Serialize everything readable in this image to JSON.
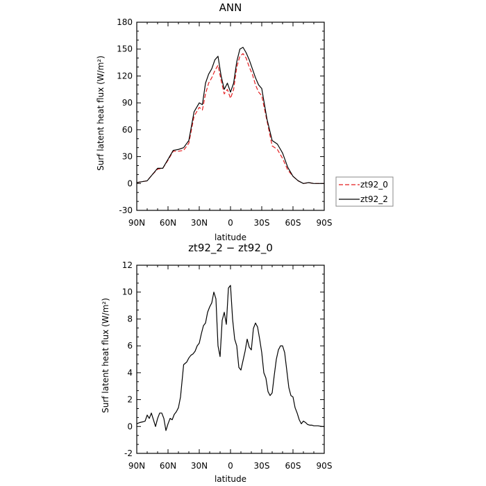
{
  "chart_data": [
    {
      "type": "line",
      "title": "ANN",
      "xlabel": "latitude",
      "ylabel": "Surf latent heat flux (W/m²)",
      "xlim": [
        90,
        -90
      ],
      "ylim": [
        -30,
        180
      ],
      "xticks": [
        90,
        60,
        30,
        0,
        -30,
        -60,
        -90
      ],
      "xtick_labels": [
        "90N",
        "60N",
        "30N",
        "0",
        "30S",
        "60S",
        "90S"
      ],
      "yticks": [
        -30,
        0,
        30,
        60,
        90,
        120,
        150,
        180
      ],
      "ytick_labels": [
        "-30",
        "0",
        "30",
        "60",
        "90",
        "120",
        "150",
        "180"
      ],
      "grid": false,
      "legend_position": "right",
      "series": [
        {
          "name": "zt92_0",
          "color": "#e41a1c",
          "dash": "dashed",
          "x": [
            90,
            85,
            80,
            75,
            70,
            65,
            60,
            55,
            50,
            45,
            40,
            35,
            30,
            27,
            24,
            21,
            18,
            15,
            12,
            9,
            6,
            3,
            0,
            -3,
            -6,
            -9,
            -12,
            -15,
            -18,
            -21,
            -24,
            -27,
            -30,
            -35,
            -40,
            -45,
            -50,
            -55,
            -60,
            -65,
            -70,
            -75,
            -80,
            -85,
            -90
          ],
          "y": [
            1,
            2,
            3,
            10,
            16,
            17,
            26,
            36,
            36,
            37,
            45,
            75,
            85,
            82,
            100,
            112,
            118,
            126,
            132,
            115,
            100,
            105,
            95,
            105,
            130,
            142,
            145,
            140,
            130,
            122,
            110,
            102,
            98,
            70,
            42,
            38,
            28,
            15,
            8,
            3,
            0,
            1,
            0,
            0,
            0
          ]
        },
        {
          "name": "zt92_2",
          "color": "#000000",
          "dash": "solid",
          "x": [
            90,
            85,
            80,
            75,
            70,
            65,
            60,
            55,
            50,
            45,
            40,
            35,
            30,
            27,
            24,
            21,
            18,
            15,
            12,
            9,
            6,
            3,
            0,
            -3,
            -6,
            -9,
            -12,
            -15,
            -18,
            -21,
            -24,
            -27,
            -30,
            -35,
            -40,
            -45,
            -50,
            -55,
            -60,
            -65,
            -70,
            -75,
            -80,
            -85,
            -90
          ],
          "y": [
            1,
            2,
            3,
            10,
            17,
            17,
            27,
            37,
            38,
            40,
            48,
            80,
            90,
            88,
            112,
            122,
            128,
            138,
            142,
            120,
            105,
            112,
            102,
            112,
            136,
            150,
            152,
            146,
            138,
            128,
            118,
            110,
            106,
            72,
            48,
            44,
            34,
            18,
            8,
            3,
            0,
            1,
            0,
            0,
            0
          ]
        }
      ]
    },
    {
      "type": "line",
      "title": "zt92_2 − zt92_0",
      "xlabel": "latitude",
      "ylabel": "Surf latent heat flux (W/m²)",
      "xlim": [
        90,
        -90
      ],
      "ylim": [
        -2,
        12
      ],
      "xticks": [
        90,
        60,
        30,
        0,
        -30,
        -60,
        -90
      ],
      "xtick_labels": [
        "90N",
        "60N",
        "30N",
        "0",
        "30S",
        "60S",
        "90S"
      ],
      "yticks": [
        -2,
        0,
        2,
        4,
        6,
        8,
        10,
        12
      ],
      "ytick_labels": [
        "-2",
        "0",
        "2",
        "4",
        "6",
        "8",
        "10",
        "12"
      ],
      "grid": false,
      "series": [
        {
          "color": "#000000",
          "dash": "solid",
          "x": [
            90,
            87,
            84,
            82,
            80,
            78,
            76,
            74,
            72,
            70,
            68,
            66,
            64,
            62,
            60,
            58,
            56,
            54,
            52,
            50,
            48,
            45,
            42,
            40,
            38,
            36,
            34,
            32,
            30,
            28,
            26,
            24,
            22,
            20,
            18,
            16,
            14,
            12,
            10,
            8,
            6,
            4,
            2,
            0,
            -2,
            -4,
            -6,
            -8,
            -10,
            -12,
            -14,
            -16,
            -18,
            -20,
            -22,
            -24,
            -26,
            -28,
            -30,
            -32,
            -34,
            -36,
            -38,
            -40,
            -42,
            -44,
            -46,
            -48,
            -50,
            -52,
            -54,
            -56,
            -58,
            -60,
            -62,
            -64,
            -66,
            -68,
            -70,
            -72,
            -74,
            -76,
            -78,
            -80,
            -84,
            -88,
            -90
          ],
          "y": [
            0.2,
            0.3,
            0.35,
            0.4,
            0.85,
            0.6,
            1.0,
            0.5,
            0.0,
            0.6,
            1.0,
            1.0,
            0.6,
            -0.3,
            0.2,
            0.6,
            0.5,
            0.9,
            1.1,
            1.4,
            2.2,
            4.6,
            4.8,
            5.1,
            5.3,
            5.4,
            5.6,
            6.0,
            6.2,
            6.9,
            7.5,
            7.7,
            8.5,
            8.9,
            9.2,
            10.0,
            9.5,
            6.0,
            5.2,
            7.9,
            8.5,
            7.6,
            10.3,
            10.5,
            8.0,
            6.5,
            6.0,
            4.4,
            4.2,
            4.9,
            5.6,
            6.5,
            5.9,
            5.7,
            7.3,
            7.7,
            7.4,
            6.5,
            5.5,
            4.0,
            3.6,
            2.6,
            2.3,
            2.5,
            3.8,
            5.0,
            5.7,
            6.0,
            6.0,
            5.5,
            4.2,
            2.9,
            2.3,
            2.2,
            1.4,
            1.0,
            0.5,
            0.2,
            0.4,
            0.3,
            0.15,
            0.1,
            0.1,
            0.05,
            0.05,
            0.0,
            0.0
          ]
        }
      ]
    }
  ]
}
